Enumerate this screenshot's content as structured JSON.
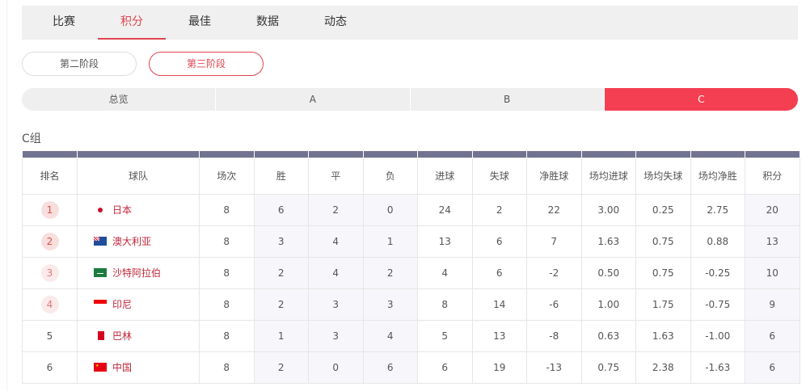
{
  "tabs": [
    "比赛",
    "积分",
    "最佳",
    "数据",
    "动态"
  ],
  "active_tab": 1,
  "stages": [
    "第二阶段",
    "第三阶段"
  ],
  "groups": [
    "总览",
    "A",
    "B",
    "C"
  ],
  "group_title": "C组",
  "colors": {
    "accent": "#e0434f",
    "active_group": "#f43f52",
    "header_bar": "#717390"
  },
  "headers": [
    "排名",
    "球队",
    "场次",
    "胜",
    "平",
    "负",
    "进球",
    "失球",
    "净胜球",
    "场均进球",
    "场均失球",
    "场均净胜",
    "积分"
  ],
  "rows": [
    {
      "rank": "1",
      "team": "日本",
      "flag": "japan-flag",
      "v": [
        "8",
        "6",
        "2",
        "0",
        "24",
        "2",
        "22",
        "3.00",
        "0.25",
        "2.75",
        "20"
      ]
    },
    {
      "rank": "2",
      "team": "澳大利亚",
      "flag": "australia-flag",
      "v": [
        "8",
        "3",
        "4",
        "1",
        "13",
        "6",
        "7",
        "1.63",
        "0.75",
        "0.88",
        "13"
      ]
    },
    {
      "rank": "3",
      "team": "沙特阿拉伯",
      "flag": "saudi-arabia-flag",
      "v": [
        "8",
        "2",
        "4",
        "2",
        "4",
        "6",
        "-2",
        "0.50",
        "0.75",
        "-0.25",
        "10"
      ]
    },
    {
      "rank": "4",
      "team": "印尼",
      "flag": "indonesia-flag",
      "v": [
        "8",
        "2",
        "3",
        "3",
        "8",
        "14",
        "-6",
        "1.00",
        "1.75",
        "-0.75",
        "9"
      ]
    },
    {
      "rank": "5",
      "team": "巴林",
      "flag": "bahrain-flag",
      "v": [
        "8",
        "1",
        "3",
        "4",
        "5",
        "13",
        "-8",
        "0.63",
        "1.63",
        "-1.00",
        "6"
      ]
    },
    {
      "rank": "6",
      "team": "中国",
      "flag": "china-flag",
      "v": [
        "8",
        "2",
        "0",
        "6",
        "6",
        "19",
        "-13",
        "0.75",
        "2.38",
        "-1.63",
        "6"
      ]
    }
  ]
}
